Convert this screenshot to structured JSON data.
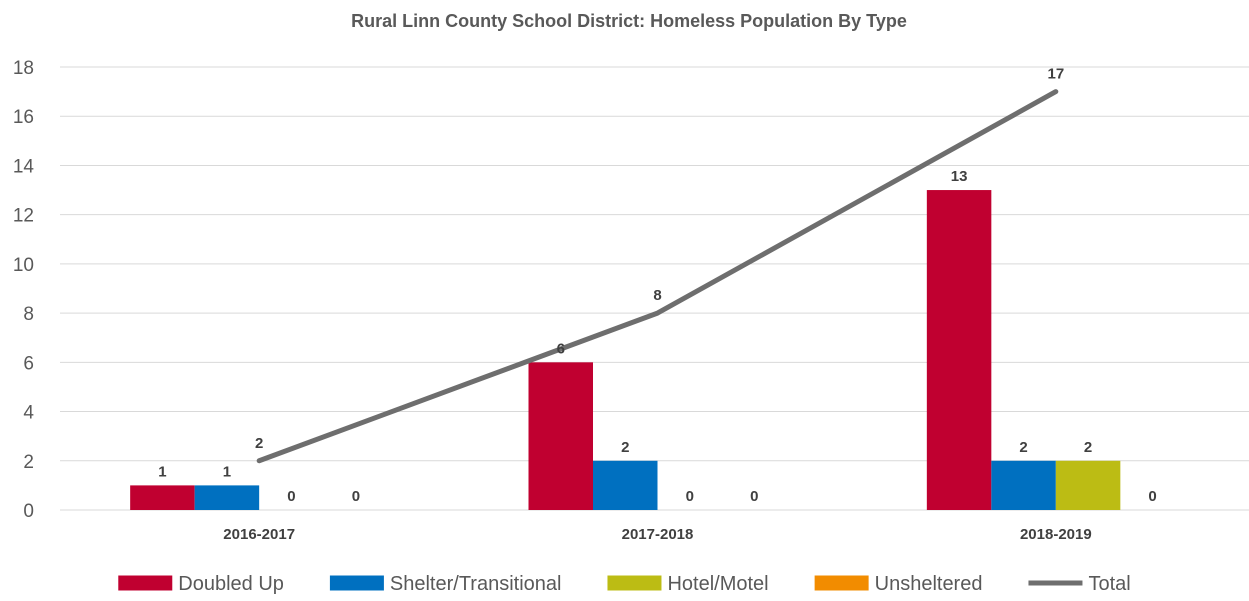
{
  "chart_data": {
    "type": "bar",
    "title": "Rural Linn County School District: Homeless Population By Type",
    "xlabel": "",
    "ylabel": "",
    "categories": [
      "2016-2017",
      "2017-2018",
      "2018-2019"
    ],
    "ylim": [
      0,
      18
    ],
    "yticks": [
      0,
      2,
      4,
      6,
      8,
      10,
      12,
      14,
      16,
      18
    ],
    "grid": true,
    "legend_position": "bottom",
    "series": [
      {
        "name": "Doubled Up",
        "type": "bar",
        "color": "#c00030",
        "values": [
          1,
          6,
          13
        ]
      },
      {
        "name": "Shelter/Transitional",
        "type": "bar",
        "color": "#0070c0",
        "values": [
          1,
          2,
          2
        ]
      },
      {
        "name": "Hotel/Motel",
        "type": "bar",
        "color": "#bcbc14",
        "values": [
          0,
          0,
          2
        ]
      },
      {
        "name": "Unsheltered",
        "type": "bar",
        "color": "#f28c00",
        "values": [
          0,
          0,
          0
        ]
      },
      {
        "name": "Total",
        "type": "line",
        "color": "#6e6e6e",
        "values": [
          2,
          8,
          17
        ]
      }
    ]
  }
}
